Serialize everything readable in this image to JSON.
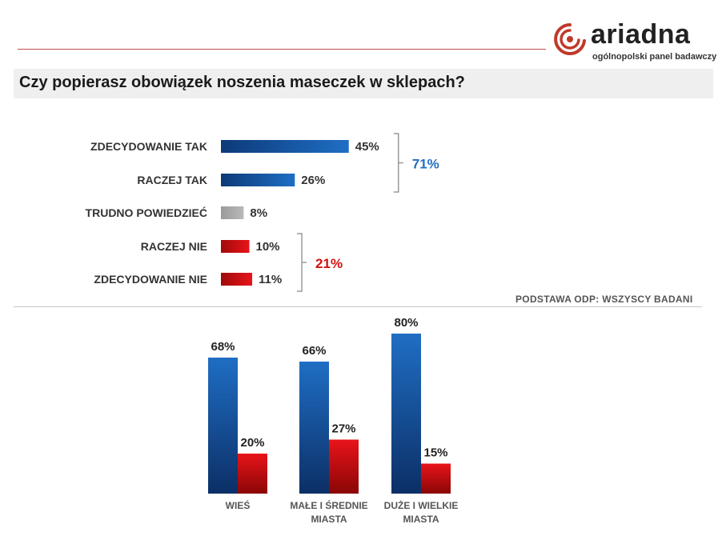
{
  "brand": {
    "name": "ariadna",
    "tagline": "ogólnopolski panel badawczy"
  },
  "title": "Czy popierasz obowiązek noszenia maseczek w sklepach?",
  "footnote": "PODSTAWA  ODP: WSZYSCY BADANI",
  "colors": {
    "yes": "#1f6ec4",
    "neutral": "#aaaaaa",
    "no": "#e8141a",
    "yes_group": "#1f6ec4",
    "no_group": "#d01010"
  },
  "chart_data": [
    {
      "type": "bar",
      "orientation": "horizontal",
      "categories": [
        "ZDECYDOWANIE TAK",
        "RACZEJ TAK",
        "TRUDNO POWIEDZIEĆ",
        "RACZEJ NIE",
        "ZDECYDOWANIE NIE"
      ],
      "values": [
        45,
        26,
        8,
        10,
        11
      ],
      "value_labels": [
        "45%",
        "26%",
        "8%",
        "10%",
        "11%"
      ],
      "groups": [
        {
          "name": "yes",
          "indices": [
            0,
            1
          ],
          "total": 71,
          "label": "71%"
        },
        {
          "name": "no",
          "indices": [
            3,
            4
          ],
          "total": 21,
          "label": "21%"
        }
      ],
      "title": "Czy popierasz obowiązek noszenia maseczek w sklepach?"
    },
    {
      "type": "bar",
      "orientation": "vertical",
      "categories": [
        [
          "WIEŚ"
        ],
        [
          "MAŁE I ŚREDNIE",
          "MIASTA"
        ],
        [
          "DUŻE I WIELKIE",
          "MIASTA"
        ]
      ],
      "series": [
        {
          "name": "tak",
          "values": [
            68,
            66,
            80
          ],
          "labels": [
            "68%",
            "66%",
            "80%"
          ]
        },
        {
          "name": "nie",
          "values": [
            20,
            27,
            15
          ],
          "labels": [
            "20%",
            "27%",
            "15%"
          ]
        }
      ],
      "ylim": [
        0,
        100
      ]
    }
  ]
}
